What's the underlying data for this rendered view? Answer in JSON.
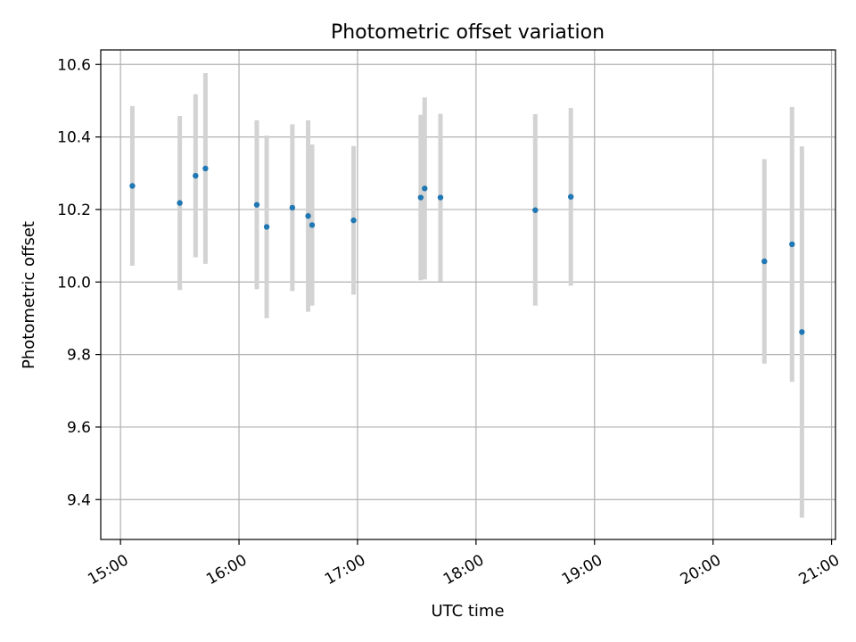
{
  "chart_data": {
    "type": "scatter",
    "title": "Photometric offset variation",
    "xlabel": "UTC time",
    "ylabel": "Photometric offset",
    "x_axis_type": "time",
    "xlim": [
      "14:50",
      "21:02"
    ],
    "ylim": [
      9.29,
      10.64
    ],
    "grid": true,
    "legend": "none",
    "x_ticks": [
      "15:00",
      "16:00",
      "17:00",
      "18:00",
      "19:00",
      "20:00",
      "21:00"
    ],
    "y_ticks": [
      9.4,
      9.6,
      9.8,
      10.0,
      10.2,
      10.4,
      10.6
    ],
    "y_tick_labels": [
      "9.4",
      "9.6",
      "9.8",
      "10.0",
      "10.2",
      "10.4",
      "10.6"
    ],
    "colors": {
      "point": "#1f77b4",
      "errorbar": "#d3d3d3",
      "grid": "#b0b0b0"
    },
    "series": [
      {
        "points": [
          {
            "x": "15:06",
            "y": 10.265,
            "ylow": 10.045,
            "yhigh": 10.485
          },
          {
            "x": "15:30",
            "y": 10.218,
            "ylow": 9.978,
            "yhigh": 10.458
          },
          {
            "x": "15:38",
            "y": 10.293,
            "ylow": 10.068,
            "yhigh": 10.518
          },
          {
            "x": "15:43",
            "y": 10.313,
            "ylow": 10.05,
            "yhigh": 10.576
          },
          {
            "x": "16:09",
            "y": 10.213,
            "ylow": 9.98,
            "yhigh": 10.446
          },
          {
            "x": "16:14",
            "y": 10.152,
            "ylow": 9.9,
            "yhigh": 10.404
          },
          {
            "x": "16:27",
            "y": 10.205,
            "ylow": 9.975,
            "yhigh": 10.435
          },
          {
            "x": "16:35",
            "y": 10.182,
            "ylow": 9.918,
            "yhigh": 10.446
          },
          {
            "x": "16:37",
            "y": 10.157,
            "ylow": 9.935,
            "yhigh": 10.379
          },
          {
            "x": "16:58",
            "y": 10.17,
            "ylow": 9.965,
            "yhigh": 10.375
          },
          {
            "x": "17:32",
            "y": 10.233,
            "ylow": 10.005,
            "yhigh": 10.461
          },
          {
            "x": "17:34",
            "y": 10.258,
            "ylow": 10.007,
            "yhigh": 10.509
          },
          {
            "x": "17:42",
            "y": 10.233,
            "ylow": 10.002,
            "yhigh": 10.464
          },
          {
            "x": "18:30",
            "y": 10.198,
            "ylow": 9.935,
            "yhigh": 10.463
          },
          {
            "x": "18:48",
            "y": 10.235,
            "ylow": 9.99,
            "yhigh": 10.48
          },
          {
            "x": "20:26",
            "y": 10.057,
            "ylow": 9.775,
            "yhigh": 10.339
          },
          {
            "x": "20:40",
            "y": 10.104,
            "ylow": 9.725,
            "yhigh": 10.483
          },
          {
            "x": "20:45",
            "y": 9.862,
            "ylow": 9.35,
            "yhigh": 10.374
          }
        ]
      }
    ]
  }
}
